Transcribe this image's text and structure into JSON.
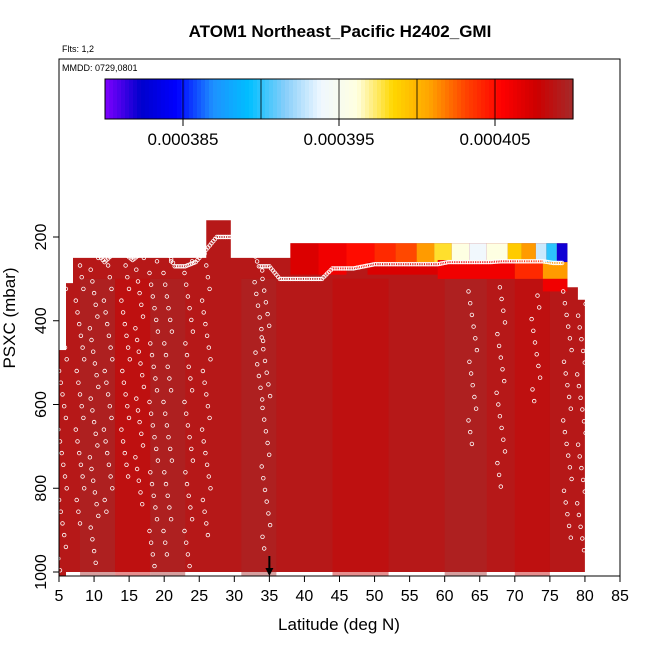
{
  "chart_data": {
    "type": "heatmap",
    "title": "ATOM1 Northeast_Pacific H2402_GMI",
    "flights_note": "Flts: 1,2",
    "date_note": "MMDD: 0729,0801",
    "xlabel": "Latitude (deg N)",
    "ylabel": "PSXC (mbar)",
    "xlim": [
      5,
      85
    ],
    "ylim": [
      1020,
      20
    ],
    "y_reversed": true,
    "x_ticks": [
      "5",
      "10",
      "15",
      "20",
      "25",
      "30",
      "35",
      "40",
      "45",
      "50",
      "55",
      "60",
      "65",
      "70",
      "75",
      "80",
      "85"
    ],
    "y_ticks": [
      "200",
      "400",
      "600",
      "800",
      "1000"
    ],
    "colorbar": {
      "min": 0.00038,
      "max": 0.00041,
      "tick_labels": [
        "0.000385",
        "0.000395",
        "0.000405"
      ],
      "tick_values": [
        0.000385,
        0.000395,
        0.000405
      ],
      "colors": [
        "#7f00ff",
        "#0000cd",
        "#0000ff",
        "#1e90ff",
        "#00bfff",
        "#87cefa",
        "#f0f8ff",
        "#ffffe0",
        "#ffd700",
        "#ffa500",
        "#ff4500",
        "#ff0000",
        "#cc0000",
        "#a52a2a"
      ]
    },
    "background_value": 0.000409,
    "cells": [
      {
        "lat": [
          26,
          29.5
        ],
        "p": [
          160,
          1000
        ],
        "v": 0.000409
      },
      {
        "lat": [
          38,
          42
        ],
        "p": [
          215,
          290
        ],
        "v": 0.000407
      },
      {
        "lat": [
          42,
          46
        ],
        "p": [
          215,
          290
        ],
        "v": 0.000406
      },
      {
        "lat": [
          46,
          50
        ],
        "p": [
          215,
          275
        ],
        "v": 0.000405
      },
      {
        "lat": [
          50,
          53
        ],
        "p": [
          215,
          270
        ],
        "v": 0.000404
      },
      {
        "lat": [
          53,
          56
        ],
        "p": [
          215,
          270
        ],
        "v": 0.000403
      },
      {
        "lat": [
          56,
          58.5
        ],
        "p": [
          215,
          265
        ],
        "v": 0.000401
      },
      {
        "lat": [
          58.5,
          61
        ],
        "p": [
          215,
          265
        ],
        "v": 0.000398
      },
      {
        "lat": [
          61,
          63.5
        ],
        "p": [
          215,
          260
        ],
        "v": 0.000396
      },
      {
        "lat": [
          63.5,
          66
        ],
        "p": [
          215,
          260
        ],
        "v": 0.000394
      },
      {
        "lat": [
          66,
          69
        ],
        "p": [
          215,
          255
        ],
        "v": 0.000396
      },
      {
        "lat": [
          69,
          71
        ],
        "p": [
          215,
          255
        ],
        "v": 0.000399
      },
      {
        "lat": [
          71,
          73
        ],
        "p": [
          215,
          255
        ],
        "v": 0.000401
      },
      {
        "lat": [
          73,
          74.5
        ],
        "p": [
          215,
          260
        ],
        "v": 0.000393
      },
      {
        "lat": [
          74.5,
          76
        ],
        "p": [
          215,
          260
        ],
        "v": 0.00039
      },
      {
        "lat": [
          76,
          77.5
        ],
        "p": [
          215,
          260
        ],
        "v": 0.000382
      },
      {
        "lat": [
          49,
          59
        ],
        "p": [
          260,
          290
        ],
        "v": 0.000407
      },
      {
        "lat": [
          59,
          70
        ],
        "p": [
          255,
          300
        ],
        "v": 0.000406
      },
      {
        "lat": [
          70,
          74
        ],
        "p": [
          255,
          300
        ],
        "v": 0.000404
      },
      {
        "lat": [
          74,
          77.5
        ],
        "p": [
          260,
          300
        ],
        "v": 0.000401
      },
      {
        "lat": [
          74,
          77.5
        ],
        "p": [
          300,
          330
        ],
        "v": 0.000406
      }
    ],
    "flight_tracks": [
      {
        "lat": [
          6,
          7,
          8.5,
          10,
          11.5,
          13,
          14,
          15.5,
          17,
          18.5,
          20,
          21.5,
          23,
          24.5,
          26,
          27.5,
          29,
          30.5,
          32,
          33.5,
          35,
          36.5,
          38,
          39.5,
          41,
          42.5,
          44,
          45.5,
          47,
          48.5,
          50,
          51.5,
          53,
          54.5,
          56,
          57.5,
          59,
          60.5,
          62,
          63.5,
          65,
          66.5,
          68,
          69.5,
          71,
          72.5,
          74,
          75.5,
          77
        ],
        "p": [
          260,
          230,
          230,
          230,
          260,
          235,
          235,
          255,
          235,
          220,
          220,
          270,
          270,
          260,
          230,
          200,
          200,
          200,
          200,
          270,
          270,
          300,
          300,
          300,
          300,
          300,
          275,
          275,
          275,
          270,
          265,
          265,
          265,
          265,
          265,
          265,
          265,
          260,
          260,
          260,
          260,
          260,
          258,
          258,
          258,
          258,
          258,
          262,
          262
        ]
      }
    ],
    "marker_lat": 35
  }
}
